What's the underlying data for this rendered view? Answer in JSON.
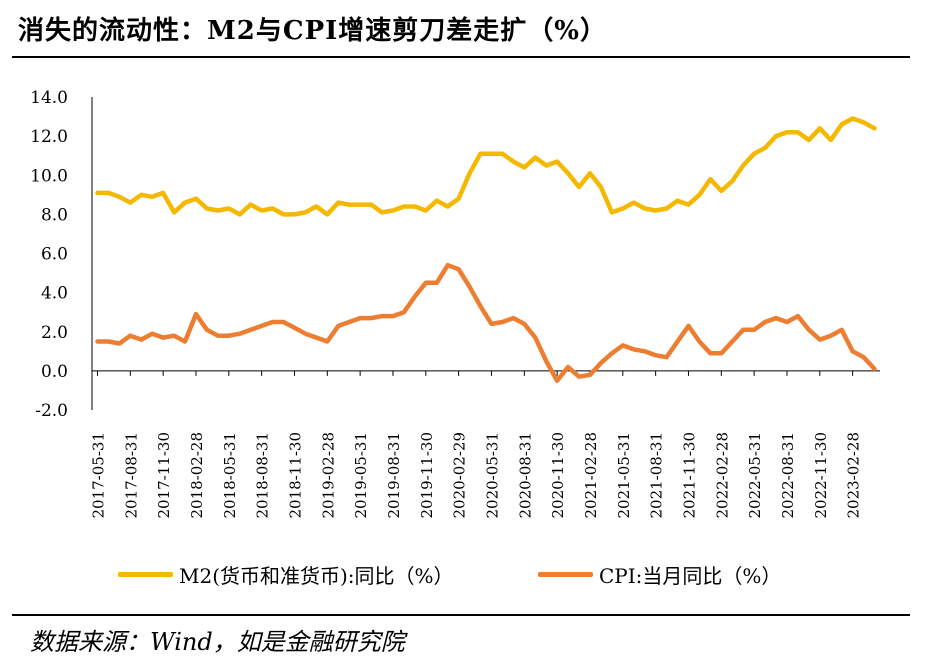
{
  "header": {
    "title": "消失的流动性：M2与CPI增速剪刀差走扩（%）"
  },
  "footer": {
    "source": "数据来源：Wind，如是金融研究院"
  },
  "legend": {
    "m2_label": "M2(货币和准货币):同比（%）",
    "cpi_label": "CPI:当月同比（%）"
  },
  "chart_data": {
    "type": "line",
    "title": "消失的流动性：M2与CPI增速剪刀差走扩（%）",
    "xlabel": "",
    "ylabel": "",
    "ylim": [
      -2.0,
      14.0
    ],
    "y_ticks": [
      "14.0",
      "12.0",
      "10.0",
      "8.0",
      "6.0",
      "4.0",
      "2.0",
      "0.0",
      "-2.0"
    ],
    "x_tick_labels": [
      "2017-05-31",
      "2017-08-31",
      "2017-11-30",
      "2018-02-28",
      "2018-05-31",
      "2018-08-31",
      "2018-11-30",
      "2019-02-28",
      "2019-05-31",
      "2019-08-31",
      "2019-11-30",
      "2020-02-29",
      "2020-05-31",
      "2020-08-31",
      "2020-11-30",
      "2021-02-28",
      "2021-05-31",
      "2021-08-31",
      "2021-11-30",
      "2022-02-28",
      "2022-05-31",
      "2022-08-31",
      "2022-11-30",
      "2023-02-28"
    ],
    "legend_position": "bottom",
    "colors": {
      "m2": "#F5B800",
      "cpi": "#ED7D31"
    },
    "series": [
      {
        "name": "M2(货币和准货币):同比（%）",
        "values": [
          9.1,
          9.1,
          8.9,
          8.6,
          9.0,
          8.9,
          9.1,
          8.1,
          8.6,
          8.8,
          8.3,
          8.2,
          8.3,
          8.0,
          8.5,
          8.2,
          8.3,
          8.0,
          8.0,
          8.1,
          8.4,
          8.0,
          8.6,
          8.5,
          8.5,
          8.5,
          8.1,
          8.2,
          8.4,
          8.4,
          8.2,
          8.7,
          8.4,
          8.8,
          10.1,
          11.1,
          11.1,
          11.1,
          10.7,
          10.4,
          10.9,
          10.5,
          10.7,
          10.1,
          9.4,
          10.1,
          9.4,
          8.1,
          8.3,
          8.6,
          8.3,
          8.2,
          8.3,
          8.7,
          8.5,
          9.0,
          9.8,
          9.2,
          9.7,
          10.5,
          11.1,
          11.4,
          12.0,
          12.2,
          12.2,
          11.8,
          12.4,
          11.8,
          12.6,
          12.9,
          12.7,
          12.4
        ]
      },
      {
        "name": "CPI:当月同比（%）",
        "values": [
          1.5,
          1.5,
          1.4,
          1.8,
          1.6,
          1.9,
          1.7,
          1.8,
          1.5,
          2.9,
          2.1,
          1.8,
          1.8,
          1.9,
          2.1,
          2.3,
          2.5,
          2.5,
          2.2,
          1.9,
          1.7,
          1.5,
          2.3,
          2.5,
          2.7,
          2.7,
          2.8,
          2.8,
          3.0,
          3.8,
          4.5,
          4.5,
          5.4,
          5.2,
          4.3,
          3.3,
          2.4,
          2.5,
          2.7,
          2.4,
          1.7,
          0.5,
          -0.5,
          0.2,
          -0.3,
          -0.2,
          0.4,
          0.9,
          1.3,
          1.1,
          1.0,
          0.8,
          0.7,
          1.5,
          2.3,
          1.5,
          0.9,
          0.9,
          1.5,
          2.1,
          2.1,
          2.5,
          2.7,
          2.5,
          2.8,
          2.1,
          1.6,
          1.8,
          2.1,
          1.0,
          0.7,
          0.1
        ]
      }
    ]
  }
}
